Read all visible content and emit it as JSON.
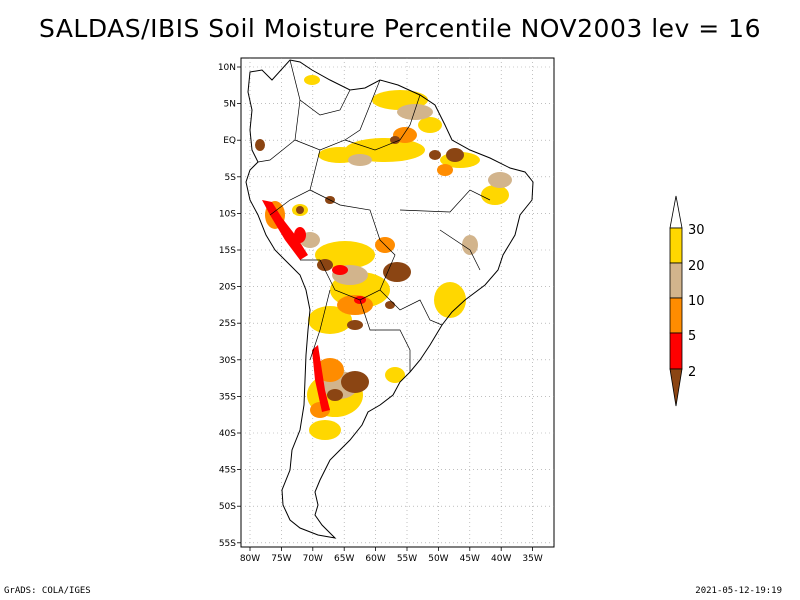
{
  "title": "SALDAS/IBIS Soil Moisture Percentile NOV2003 lev = 16",
  "footer": {
    "left": "GrADS: COLA/IGES",
    "right": "2021-05-12-19:19"
  },
  "axes": {
    "lat_labels": [
      "10N",
      "5N",
      "EQ",
      "5S",
      "10S",
      "15S",
      "20S",
      "25S",
      "30S",
      "35S",
      "40S",
      "45S",
      "50S",
      "55S"
    ],
    "lon_labels": [
      "80W",
      "75W",
      "70W",
      "65W",
      "60W",
      "55W",
      "50W",
      "45W",
      "40W",
      "35W"
    ]
  },
  "colorbar": {
    "labels": [
      "30",
      "20",
      "10",
      "5",
      "2"
    ],
    "colors": {
      "above30": "#ffffff",
      "p20_30": "#ffd700",
      "p10_20": "#d2b48c",
      "p5_10": "#ff8c00",
      "p2_5": "#ff0000",
      "below2": "#8b4513"
    }
  }
}
